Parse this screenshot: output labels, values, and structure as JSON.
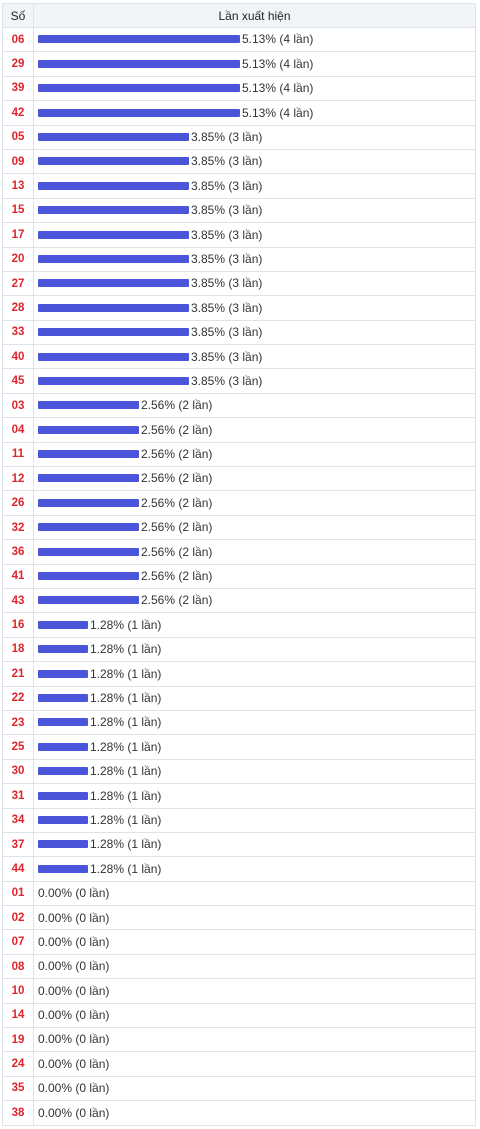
{
  "table": {
    "header_number": "Số",
    "header_count": "Lần xuất hiện"
  },
  "colors": {
    "bar": "#4a55d9",
    "number": "#e0242c"
  },
  "chart_data": {
    "type": "bar",
    "orientation": "horizontal",
    "columns": [
      "Số",
      "Lần xuất hiện"
    ],
    "rows": [
      {
        "number": "06",
        "percent": 5.13,
        "count": 4,
        "label": "5.13% (4 lần)"
      },
      {
        "number": "29",
        "percent": 5.13,
        "count": 4,
        "label": "5.13% (4 lần)"
      },
      {
        "number": "39",
        "percent": 5.13,
        "count": 4,
        "label": "5.13% (4 lần)"
      },
      {
        "number": "42",
        "percent": 5.13,
        "count": 4,
        "label": "5.13% (4 lần)"
      },
      {
        "number": "05",
        "percent": 3.85,
        "count": 3,
        "label": "3.85% (3 lần)"
      },
      {
        "number": "09",
        "percent": 3.85,
        "count": 3,
        "label": "3.85% (3 lần)"
      },
      {
        "number": "13",
        "percent": 3.85,
        "count": 3,
        "label": "3.85% (3 lần)"
      },
      {
        "number": "15",
        "percent": 3.85,
        "count": 3,
        "label": "3.85% (3 lần)"
      },
      {
        "number": "17",
        "percent": 3.85,
        "count": 3,
        "label": "3.85% (3 lần)"
      },
      {
        "number": "20",
        "percent": 3.85,
        "count": 3,
        "label": "3.85% (3 lần)"
      },
      {
        "number": "27",
        "percent": 3.85,
        "count": 3,
        "label": "3.85% (3 lần)"
      },
      {
        "number": "28",
        "percent": 3.85,
        "count": 3,
        "label": "3.85% (3 lần)"
      },
      {
        "number": "33",
        "percent": 3.85,
        "count": 3,
        "label": "3.85% (3 lần)"
      },
      {
        "number": "40",
        "percent": 3.85,
        "count": 3,
        "label": "3.85% (3 lần)"
      },
      {
        "number": "45",
        "percent": 3.85,
        "count": 3,
        "label": "3.85% (3 lần)"
      },
      {
        "number": "03",
        "percent": 2.56,
        "count": 2,
        "label": "2.56% (2 lần)"
      },
      {
        "number": "04",
        "percent": 2.56,
        "count": 2,
        "label": "2.56% (2 lần)"
      },
      {
        "number": "11",
        "percent": 2.56,
        "count": 2,
        "label": "2.56% (2 lần)"
      },
      {
        "number": "12",
        "percent": 2.56,
        "count": 2,
        "label": "2.56% (2 lần)"
      },
      {
        "number": "26",
        "percent": 2.56,
        "count": 2,
        "label": "2.56% (2 lần)"
      },
      {
        "number": "32",
        "percent": 2.56,
        "count": 2,
        "label": "2.56% (2 lần)"
      },
      {
        "number": "36",
        "percent": 2.56,
        "count": 2,
        "label": "2.56% (2 lần)"
      },
      {
        "number": "41",
        "percent": 2.56,
        "count": 2,
        "label": "2.56% (2 lần)"
      },
      {
        "number": "43",
        "percent": 2.56,
        "count": 2,
        "label": "2.56% (2 lần)"
      },
      {
        "number": "16",
        "percent": 1.28,
        "count": 1,
        "label": "1.28% (1 lần)"
      },
      {
        "number": "18",
        "percent": 1.28,
        "count": 1,
        "label": "1.28% (1 lần)"
      },
      {
        "number": "21",
        "percent": 1.28,
        "count": 1,
        "label": "1.28% (1 lần)"
      },
      {
        "number": "22",
        "percent": 1.28,
        "count": 1,
        "label": "1.28% (1 lần)"
      },
      {
        "number": "23",
        "percent": 1.28,
        "count": 1,
        "label": "1.28% (1 lần)"
      },
      {
        "number": "25",
        "percent": 1.28,
        "count": 1,
        "label": "1.28% (1 lần)"
      },
      {
        "number": "30",
        "percent": 1.28,
        "count": 1,
        "label": "1.28% (1 lần)"
      },
      {
        "number": "31",
        "percent": 1.28,
        "count": 1,
        "label": "1.28% (1 lần)"
      },
      {
        "number": "34",
        "percent": 1.28,
        "count": 1,
        "label": "1.28% (1 lần)"
      },
      {
        "number": "37",
        "percent": 1.28,
        "count": 1,
        "label": "1.28% (1 lần)"
      },
      {
        "number": "44",
        "percent": 1.28,
        "count": 1,
        "label": "1.28% (1 lần)"
      },
      {
        "number": "01",
        "percent": 0.0,
        "count": 0,
        "label": "0.00% (0 lần)"
      },
      {
        "number": "02",
        "percent": 0.0,
        "count": 0,
        "label": "0.00% (0 lần)"
      },
      {
        "number": "07",
        "percent": 0.0,
        "count": 0,
        "label": "0.00% (0 lần)"
      },
      {
        "number": "08",
        "percent": 0.0,
        "count": 0,
        "label": "0.00% (0 lần)"
      },
      {
        "number": "10",
        "percent": 0.0,
        "count": 0,
        "label": "0.00% (0 lần)"
      },
      {
        "number": "14",
        "percent": 0.0,
        "count": 0,
        "label": "0.00% (0 lần)"
      },
      {
        "number": "19",
        "percent": 0.0,
        "count": 0,
        "label": "0.00% (0 lần)"
      },
      {
        "number": "24",
        "percent": 0.0,
        "count": 0,
        "label": "0.00% (0 lần)"
      },
      {
        "number": "35",
        "percent": 0.0,
        "count": 0,
        "label": "0.00% (0 lần)"
      },
      {
        "number": "38",
        "percent": 0.0,
        "count": 0,
        "label": "0.00% (0 lần)"
      }
    ]
  }
}
